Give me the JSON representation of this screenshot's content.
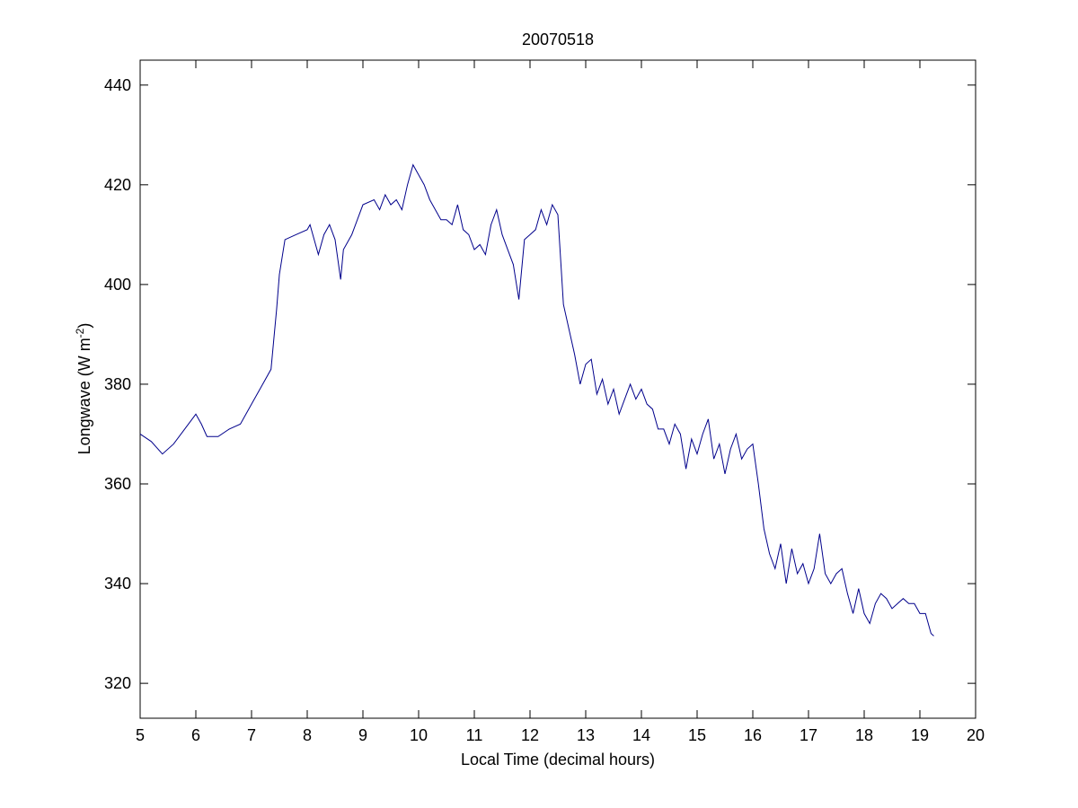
{
  "chart_data": {
    "type": "line",
    "title": "20070518",
    "xlabel": "Local Time (decimal hours)",
    "ylabel": [
      "Longwave (W m",
      "-2",
      ")"
    ],
    "xlim": [
      5,
      20
    ],
    "xticks": [
      5,
      6,
      7,
      8,
      9,
      10,
      11,
      12,
      13,
      14,
      15,
      16,
      17,
      18,
      19,
      20
    ],
    "ylim": [
      313,
      445
    ],
    "yticks": [
      320,
      340,
      360,
      380,
      400,
      420,
      440
    ],
    "series": [
      {
        "color": "#00008b",
        "x": [
          5.0,
          5.2,
          5.4,
          5.6,
          5.8,
          6.0,
          6.1,
          6.2,
          6.4,
          6.6,
          6.8,
          7.0,
          7.2,
          7.35,
          7.45,
          7.5,
          7.6,
          7.8,
          8.0,
          8.05,
          8.2,
          8.3,
          8.4,
          8.5,
          8.6,
          8.65,
          8.8,
          8.9,
          9.0,
          9.2,
          9.3,
          9.4,
          9.5,
          9.6,
          9.7,
          9.8,
          9.9,
          10.0,
          10.1,
          10.2,
          10.3,
          10.4,
          10.5,
          10.6,
          10.7,
          10.8,
          10.9,
          11.0,
          11.1,
          11.2,
          11.3,
          11.4,
          11.5,
          11.6,
          11.7,
          11.8,
          11.9,
          12.0,
          12.1,
          12.2,
          12.3,
          12.4,
          12.5,
          12.6,
          12.7,
          12.8,
          12.9,
          13.0,
          13.1,
          13.2,
          13.3,
          13.4,
          13.5,
          13.6,
          13.7,
          13.8,
          13.9,
          14.0,
          14.1,
          14.2,
          14.3,
          14.4,
          14.5,
          14.6,
          14.7,
          14.8,
          14.9,
          15.0,
          15.1,
          15.2,
          15.3,
          15.4,
          15.5,
          15.6,
          15.7,
          15.8,
          15.9,
          16.0,
          16.1,
          16.2,
          16.3,
          16.4,
          16.5,
          16.6,
          16.7,
          16.8,
          16.9,
          17.0,
          17.1,
          17.2,
          17.3,
          17.4,
          17.5,
          17.6,
          17.7,
          17.8,
          17.9,
          18.0,
          18.1,
          18.2,
          18.3,
          18.4,
          18.5,
          18.6,
          18.7,
          18.8,
          18.9,
          19.0,
          19.1,
          19.2,
          19.25
        ],
        "values": [
          370,
          368.5,
          366,
          368,
          371,
          374,
          372,
          369.5,
          369.5,
          371,
          372,
          376,
          380,
          383,
          395,
          402,
          409,
          410,
          411,
          412,
          406,
          410,
          412,
          409,
          401,
          407,
          410,
          413,
          416,
          417,
          415,
          418,
          416,
          417,
          415,
          420,
          424,
          422,
          420,
          417,
          415,
          413,
          413,
          412,
          416,
          411,
          410,
          407,
          408,
          406,
          412,
          415,
          410,
          407,
          404,
          397,
          409,
          410,
          411,
          415,
          412,
          416,
          414,
          396,
          391,
          386,
          380,
          384,
          385,
          378,
          381,
          376,
          379,
          374,
          377,
          380,
          377,
          379,
          376,
          375,
          371,
          371,
          368,
          372,
          370,
          363,
          369,
          366,
          370,
          373,
          365,
          368,
          362,
          367,
          370,
          365,
          367,
          368,
          360,
          351,
          346,
          343,
          348,
          340,
          347,
          342,
          344,
          340,
          343,
          350,
          342,
          340,
          342,
          343,
          338,
          334,
          339,
          334,
          332,
          336,
          338,
          337,
          335,
          336,
          337,
          336,
          336,
          334,
          334,
          330,
          329.5
        ]
      }
    ]
  }
}
